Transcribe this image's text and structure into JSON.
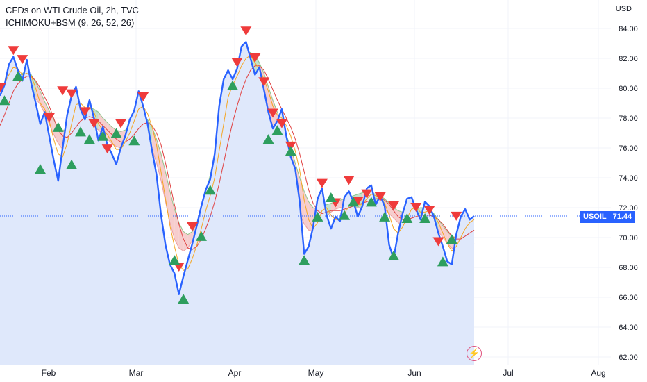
{
  "header": {
    "title": "CFDs on WTI Crude Oil, 2h, TVC",
    "indicator": "ICHIMOKU+BSM (9, 26, 52, 26)"
  },
  "currency": "USD",
  "price_tag": {
    "symbol": "USOIL",
    "value": "71.44"
  },
  "colors": {
    "price": "#2962ff",
    "fill": "#dfe8fb",
    "tenkan": "#f5a623",
    "kijun": "#e04040",
    "cloud_up": "#b8dcc4",
    "cloud_down": "#f4c4c4",
    "buy": "#2e9e5e",
    "sell": "#ef3b3b"
  },
  "icons": {
    "bolt": "lightning-bolt-icon"
  },
  "chart_data": {
    "type": "line",
    "x_labels": [
      "Feb",
      "Mar",
      "Apr",
      "May",
      "Jun",
      "Jul",
      "Aug"
    ],
    "y_ticks": [
      "84.00",
      "82.00",
      "80.00",
      "78.00",
      "76.00",
      "74.00",
      "72.00",
      "70.00",
      "68.00",
      "66.00",
      "64.00",
      "62.00"
    ],
    "ylim": [
      62,
      85
    ],
    "last_price": 71.44,
    "series": [
      {
        "name": "USOIL",
        "values": [
          79.5,
          80.2,
          81.6,
          82.1,
          81.2,
          80.5,
          81.9,
          80.3,
          79.0,
          77.6,
          78.4,
          76.8,
          75.2,
          73.8,
          76.0,
          78.2,
          79.5,
          80.1,
          78.6,
          77.9,
          79.2,
          78.0,
          76.5,
          77.4,
          76.2,
          75.6,
          74.9,
          76.0,
          76.8,
          77.9,
          78.5,
          79.8,
          78.8,
          77.6,
          75.8,
          74.2,
          71.5,
          69.5,
          68.2,
          67.6,
          66.2,
          67.4,
          68.5,
          69.6,
          70.8,
          72.1,
          73.2,
          73.9,
          75.6,
          78.8,
          80.6,
          81.2,
          80.6,
          81.3,
          82.8,
          83.1,
          82.0,
          80.9,
          81.4,
          79.9,
          78.4,
          77.3,
          77.8,
          78.6,
          76.8,
          75.4,
          74.6,
          72.4,
          68.9,
          69.4,
          70.7,
          72.6,
          73.3,
          71.5,
          70.6,
          71.4,
          71.1,
          72.7,
          73.1,
          72.4,
          71.4,
          72.1,
          73.3,
          73.5,
          72.2,
          72.8,
          72.1,
          69.5,
          68.6,
          70.3,
          71.6,
          72.6,
          72.7,
          71.9,
          71.2,
          72.4,
          72.1,
          71.4,
          70.3,
          69.4,
          68.4,
          68.2,
          70.2,
          71.4,
          71.9,
          71.2,
          71.44
        ]
      },
      {
        "name": "Tenkan",
        "values": [
          79.8,
          80.3,
          80.9,
          81.4,
          81.3,
          80.9,
          81.0,
          80.8,
          80.0,
          79.0,
          78.6,
          77.8,
          76.6,
          75.6,
          75.4,
          76.3,
          77.6,
          78.9,
          79.0,
          78.7,
          78.7,
          78.4,
          77.6,
          77.2,
          76.9,
          76.4,
          75.9,
          75.9,
          76.4,
          77.0,
          77.8,
          78.6,
          78.8,
          78.3,
          77.4,
          76.2,
          74.4,
          72.6,
          70.8,
          69.4,
          68.2,
          67.8,
          67.9,
          68.6,
          69.5,
          70.6,
          71.8,
          72.8,
          74.0,
          75.8,
          77.6,
          79.4,
          80.2,
          80.8,
          81.5,
          82.0,
          82.2,
          81.7,
          81.3,
          80.6,
          79.8,
          78.8,
          78.2,
          78.0,
          77.5,
          76.8,
          75.8,
          74.5,
          72.5,
          71.2,
          70.6,
          71.0,
          71.8,
          72.0,
          71.5,
          71.2,
          71.2,
          71.6,
          72.1,
          72.3,
          72.2,
          72.2,
          72.6,
          72.9,
          72.8,
          72.6,
          72.3,
          71.5,
          70.6,
          70.3,
          70.7,
          71.3,
          71.9,
          72.0,
          71.7,
          71.7,
          71.8,
          71.5,
          71.0,
          70.3,
          69.6,
          69.1,
          69.4,
          70.0,
          70.6,
          71.0,
          71.2
        ]
      },
      {
        "name": "Kijun",
        "values": [
          77.5,
          78.2,
          79.0,
          79.8,
          80.3,
          80.6,
          80.8,
          80.8,
          80.5,
          80.0,
          79.4,
          78.8,
          78.0,
          77.2,
          76.8,
          76.7,
          77.0,
          77.4,
          77.8,
          78.0,
          78.1,
          78.0,
          77.8,
          77.5,
          77.2,
          76.9,
          76.6,
          76.4,
          76.4,
          76.6,
          76.9,
          77.3,
          77.6,
          77.7,
          77.5,
          77.0,
          76.2,
          75.0,
          73.6,
          72.2,
          70.9,
          69.9,
          69.3,
          69.2,
          69.4,
          69.9,
          70.6,
          71.4,
          72.4,
          73.6,
          75.0,
          76.4,
          77.7,
          78.8,
          79.8,
          80.6,
          81.2,
          81.5,
          81.5,
          81.2,
          80.6,
          79.9,
          79.2,
          78.6,
          78.0,
          77.4,
          76.6,
          75.6,
          74.4,
          73.2,
          72.3,
          71.8,
          71.6,
          71.7,
          71.8,
          71.8,
          71.8,
          71.9,
          72.0,
          72.1,
          72.2,
          72.3,
          72.4,
          72.5,
          72.6,
          72.6,
          72.5,
          72.2,
          71.8,
          71.4,
          71.2,
          71.2,
          71.3,
          71.4,
          71.5,
          71.5,
          71.5,
          71.4,
          71.2,
          70.9,
          70.5,
          70.1,
          69.9,
          69.9,
          70.1,
          70.3,
          70.5
        ]
      },
      {
        "name": "Cloud Upper",
        "values": [
          77.2,
          78.0,
          79.2,
          80.1,
          80.7,
          81.0,
          81.1,
          80.9,
          80.4,
          79.8,
          79.1,
          78.5,
          77.9,
          77.4,
          77.2,
          77.2,
          77.5,
          77.9,
          78.3,
          78.6,
          78.7,
          78.6,
          78.4,
          78.0,
          77.7,
          77.4,
          77.2,
          77.1,
          77.2,
          77.4,
          77.7,
          78.0,
          78.1,
          77.9,
          77.4,
          76.6,
          75.6,
          74.4,
          73.1,
          71.9,
          71.0,
          70.4,
          70.2,
          70.4,
          71.0,
          71.9,
          73.0,
          74.2,
          75.5,
          76.8,
          78.1,
          79.4,
          80.4,
          81.3,
          81.9,
          82.3,
          82.4,
          82.2,
          81.7,
          81.0,
          80.1,
          79.2,
          78.4,
          77.7,
          76.9,
          76.0,
          75.0,
          74.0,
          73.1,
          72.4,
          72.0,
          71.9,
          72.0,
          72.2,
          72.3,
          72.4,
          72.5,
          72.6,
          72.7,
          72.8,
          72.9,
          73.0,
          73.0,
          73.0,
          72.9,
          72.8,
          72.6,
          72.3,
          72.0,
          71.8,
          71.7,
          71.7,
          71.8,
          71.9,
          72.0,
          72.0,
          71.9,
          71.6,
          71.2,
          70.8,
          70.4,
          70.1,
          70.0,
          70.1,
          70.3,
          70.6,
          70.8
        ]
      },
      {
        "name": "Cloud Lower",
        "values": [
          75.8,
          76.3,
          76.9,
          77.6,
          78.3,
          78.9,
          79.3,
          79.5,
          79.3,
          78.9,
          78.3,
          77.6,
          76.9,
          76.3,
          75.9,
          75.8,
          76.0,
          76.4,
          76.8,
          77.2,
          77.4,
          77.4,
          77.2,
          76.9,
          76.6,
          76.3,
          76.1,
          76.0,
          76.1,
          76.3,
          76.6,
          76.8,
          76.8,
          76.5,
          75.9,
          75.0,
          73.8,
          72.4,
          71.0,
          69.9,
          69.3,
          69.1,
          69.3,
          69.8,
          70.6,
          71.6,
          72.8,
          74.0,
          75.2,
          76.3,
          77.3,
          78.1,
          78.8,
          79.3,
          79.6,
          79.7,
          79.6,
          79.2,
          78.7,
          78.1,
          77.4,
          76.7,
          76.0,
          75.3,
          74.5,
          73.6,
          72.6,
          71.6,
          70.9,
          70.5,
          70.4,
          70.6,
          71.0,
          71.4,
          71.7,
          71.9,
          72.0,
          72.0,
          72.0,
          72.0,
          72.0,
          72.0,
          72.1,
          72.2,
          72.2,
          72.1,
          71.9,
          71.6,
          71.3,
          71.0,
          70.8,
          70.7,
          70.8,
          70.9,
          71.0,
          71.0,
          70.9,
          70.7,
          70.4,
          70.0,
          69.6,
          69.3,
          69.1,
          69.1,
          69.2,
          69.4,
          69.6
        ]
      }
    ],
    "signals": {
      "sell": [
        [
          0,
          80.0
        ],
        [
          3,
          82.5
        ],
        [
          5,
          81.9
        ],
        [
          11,
          78.0
        ],
        [
          14,
          79.8
        ],
        [
          16,
          79.6
        ],
        [
          19,
          78.4
        ],
        [
          21,
          77.6
        ],
        [
          24,
          75.9
        ],
        [
          27,
          77.6
        ],
        [
          32,
          79.4
        ],
        [
          40,
          68.0
        ],
        [
          43,
          70.7
        ],
        [
          53,
          81.7
        ],
        [
          55,
          83.8
        ],
        [
          57,
          82.0
        ],
        [
          59,
          80.4
        ],
        [
          61,
          78.3
        ],
        [
          63,
          77.6
        ],
        [
          65,
          76.1
        ],
        [
          72,
          73.6
        ],
        [
          75,
          72.3
        ],
        [
          78,
          73.8
        ],
        [
          80,
          72.4
        ],
        [
          82,
          72.9
        ],
        [
          85,
          72.7
        ],
        [
          88,
          72.1
        ],
        [
          93,
          72.0
        ],
        [
          96,
          71.8
        ],
        [
          98,
          69.7
        ],
        [
          102,
          71.4
        ]
      ],
      "buy": [
        [
          1,
          79.2
        ],
        [
          4,
          80.8
        ],
        [
          9,
          74.6
        ],
        [
          13,
          77.4
        ],
        [
          16,
          74.9
        ],
        [
          18,
          77.1
        ],
        [
          20,
          76.6
        ],
        [
          23,
          76.8
        ],
        [
          26,
          77.0
        ],
        [
          30,
          76.5
        ],
        [
          39,
          68.5
        ],
        [
          41,
          65.9
        ],
        [
          45,
          70.1
        ],
        [
          47,
          73.2
        ],
        [
          52,
          80.2
        ],
        [
          60,
          76.6
        ],
        [
          62,
          77.2
        ],
        [
          65,
          75.8
        ],
        [
          68,
          68.5
        ],
        [
          71,
          71.4
        ],
        [
          74,
          72.7
        ],
        [
          77,
          71.5
        ],
        [
          79,
          72.4
        ],
        [
          83,
          72.4
        ],
        [
          86,
          71.4
        ],
        [
          88,
          68.8
        ],
        [
          91,
          71.3
        ],
        [
          95,
          71.3
        ],
        [
          99,
          68.4
        ],
        [
          101,
          69.9
        ]
      ]
    }
  }
}
